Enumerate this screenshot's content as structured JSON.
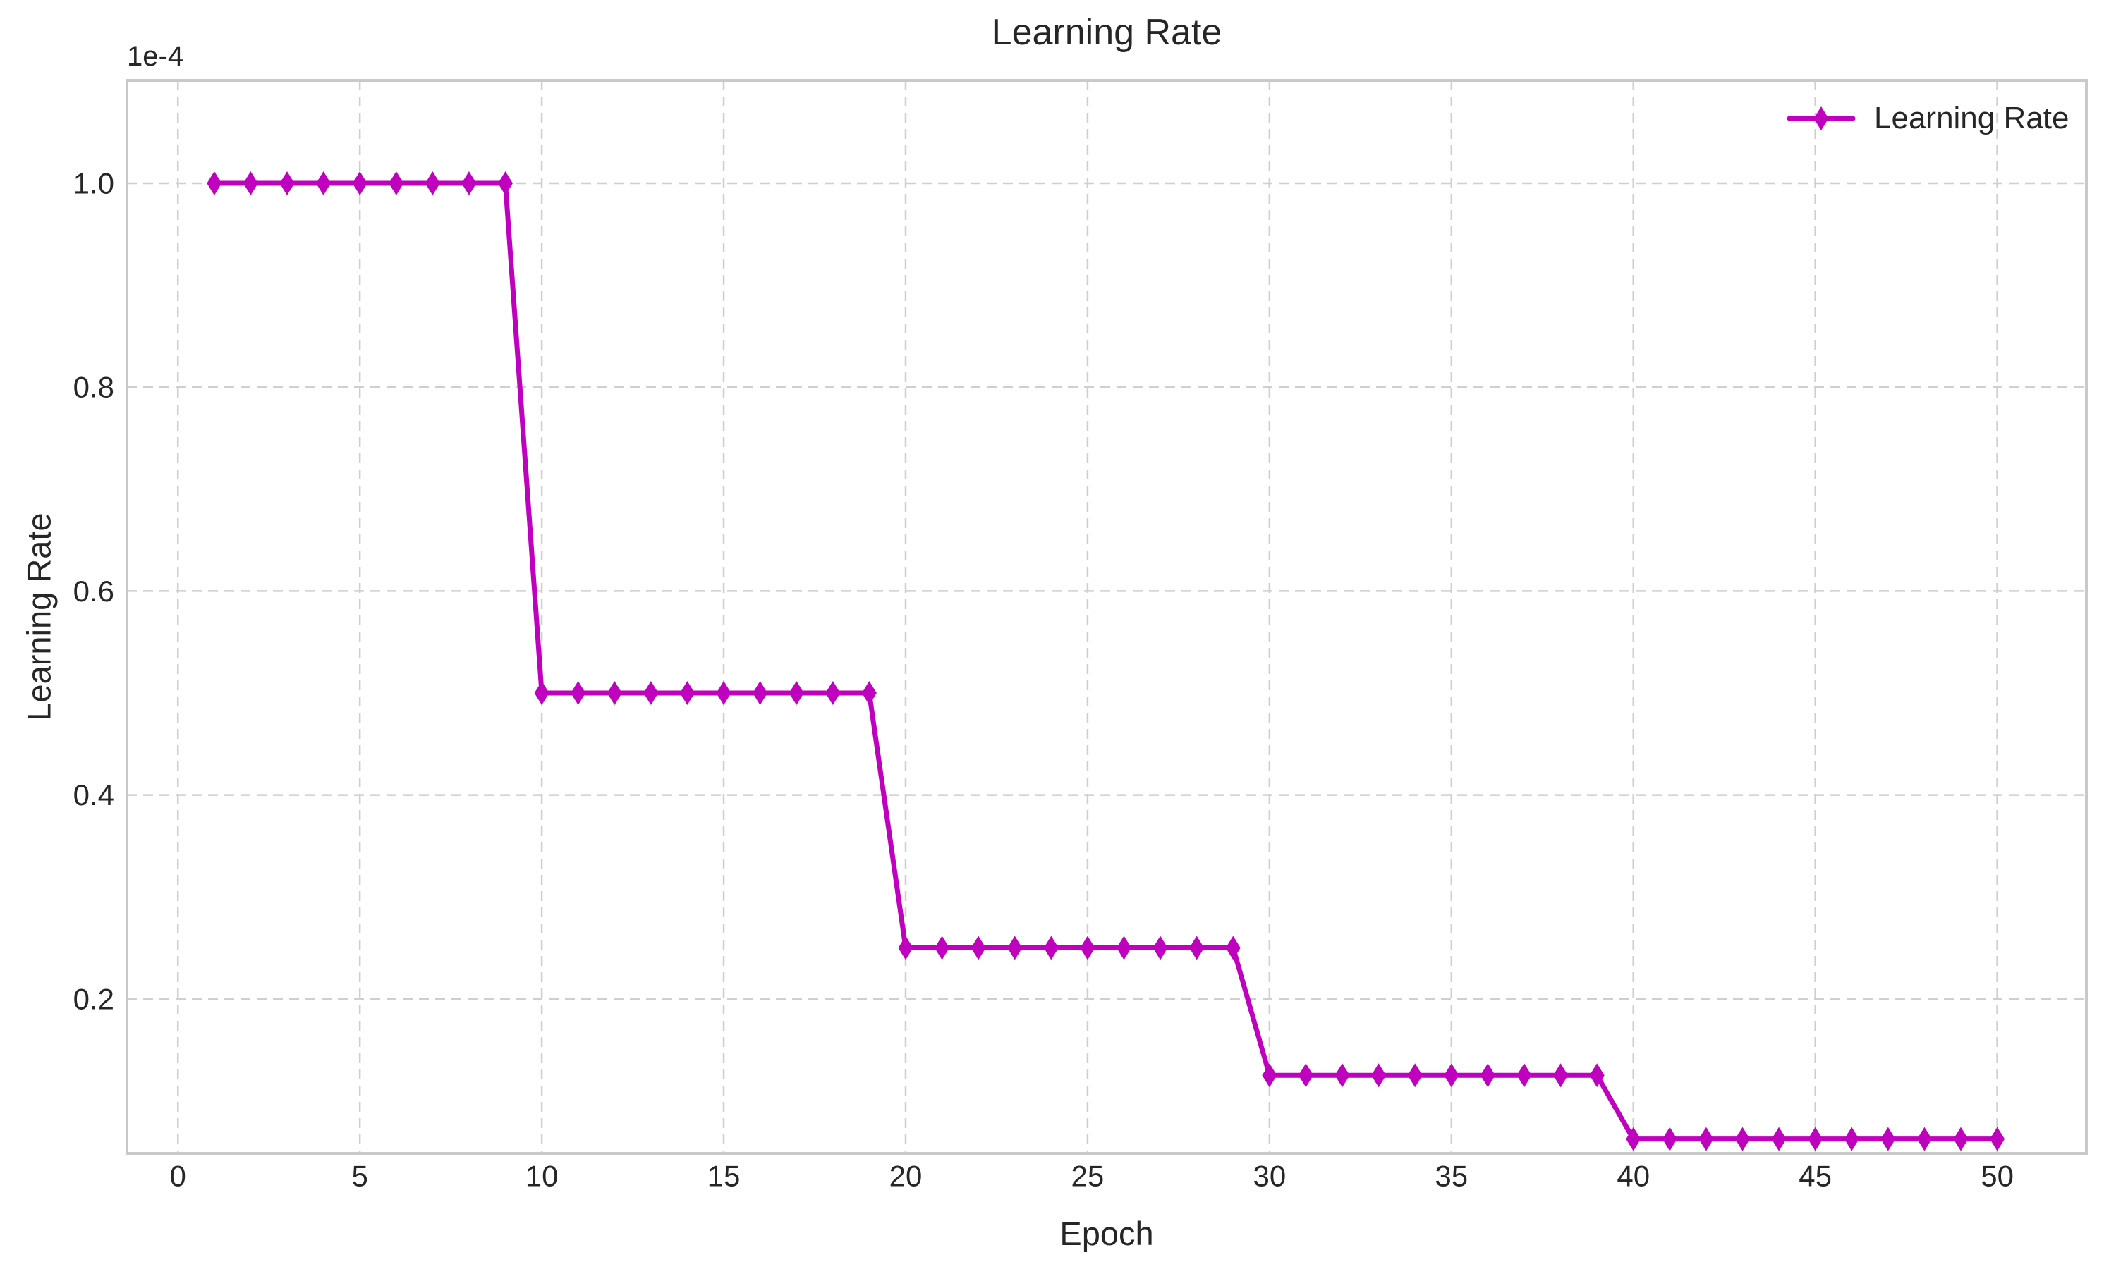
{
  "chart_data": {
    "type": "line",
    "title": "Learning Rate",
    "xlabel": "Epoch",
    "ylabel": "Learning Rate",
    "y_offset_text": "1e-4",
    "y_unit_scale": "1e-4",
    "grid": {
      "on": true,
      "linestyle": "dashed",
      "color": "#cfcfcf"
    },
    "axes": {
      "xlim": [
        -1.4,
        52.45
      ],
      "ylim": [
        0.0484,
        1.101
      ],
      "x_ticks": [
        0,
        5,
        10,
        15,
        20,
        25,
        30,
        35,
        40,
        45,
        50
      ],
      "y_ticks": [
        0.2,
        0.4,
        0.6,
        0.8,
        1.0
      ],
      "spine_color": "#c9c9c9",
      "tick_text_color": "#262626"
    },
    "legend": {
      "position": "upper-right",
      "frame": false,
      "entries": [
        {
          "label": "Learning Rate",
          "color": "#BF00BF",
          "marker": "thin-diamond"
        }
      ]
    },
    "series": [
      {
        "name": "Learning Rate",
        "color": "#BF00BF",
        "marker": "thin-diamond",
        "line_width": 7,
        "x": [
          1,
          2,
          3,
          4,
          5,
          6,
          7,
          8,
          9,
          10,
          11,
          12,
          13,
          14,
          15,
          16,
          17,
          18,
          19,
          20,
          21,
          22,
          23,
          24,
          25,
          26,
          27,
          28,
          29,
          30,
          31,
          32,
          33,
          34,
          35,
          36,
          37,
          38,
          39,
          40,
          41,
          42,
          43,
          44,
          45,
          46,
          47,
          48,
          49,
          50
        ],
        "y": [
          1.0,
          1.0,
          1.0,
          1.0,
          1.0,
          1.0,
          1.0,
          1.0,
          1.0,
          0.5,
          0.5,
          0.5,
          0.5,
          0.5,
          0.5,
          0.5,
          0.5,
          0.5,
          0.5,
          0.25,
          0.25,
          0.25,
          0.25,
          0.25,
          0.25,
          0.25,
          0.25,
          0.25,
          0.25,
          0.125,
          0.125,
          0.125,
          0.125,
          0.125,
          0.125,
          0.125,
          0.125,
          0.125,
          0.125,
          0.0625,
          0.0625,
          0.0625,
          0.0625,
          0.0625,
          0.0625,
          0.0625,
          0.0625,
          0.0625,
          0.0625,
          0.0625
        ]
      }
    ]
  }
}
